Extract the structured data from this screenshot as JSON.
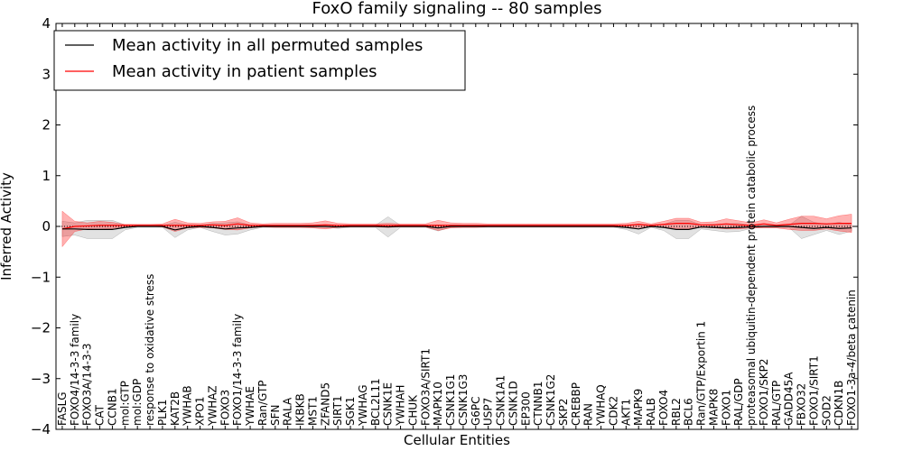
{
  "chart_data": {
    "type": "line",
    "title": "FoxO family signaling -- 80 samples",
    "xlabel": "Cellular Entities",
    "ylabel": "Inferred Activity",
    "ylim": [
      -4,
      4
    ],
    "yticks": [
      -4,
      -3,
      -2,
      -1,
      0,
      1,
      2,
      3,
      4
    ],
    "ytick_labels": [
      "−4",
      "−3",
      "−2",
      "−1",
      "0",
      "1",
      "2",
      "3",
      "4"
    ],
    "legend": {
      "placement": "top-left",
      "entries": [
        {
          "label": "Mean activity in all permuted samples",
          "color": "#000000"
        },
        {
          "label": "Mean activity in patient samples",
          "color": "#ff0000"
        }
      ]
    },
    "categories": [
      "FASLG",
      "FOXO4/14-3-3 family",
      "FOXO3A/14-3-3",
      "CAT",
      "CCNB1",
      "mol:GTP",
      "mol:GDP",
      "response to oxidative stress",
      "PLK1",
      "KAT2B",
      "YWHAB",
      "XPO1",
      "YWHAZ",
      "FOXO3",
      "FOXO1/14-3-3 family",
      "YWHAE",
      "Ran/GTP",
      "SFN",
      "RALA",
      "IKBKB",
      "MST1",
      "ZFAND5",
      "SIRT1",
      "SGK1",
      "YWHAG",
      "BCL2L11",
      "CSNK1E",
      "YWHAH",
      "CHUK",
      "FOXO3A/SIRT1",
      "MAPK10",
      "CSNK1G1",
      "CSNK1G3",
      "G6PC",
      "USP7",
      "CSNK1A1",
      "CSNK1D",
      "EP300",
      "CTNNB1",
      "CSNK1G2",
      "SKP2",
      "CREBBP",
      "RAN",
      "YWHAQ",
      "CDK2",
      "AKT1",
      "MAPK9",
      "RALB",
      "FOXO4",
      "RBL2",
      "BCL6",
      "Ran/GTP/Exportin 1",
      "MAPK8",
      "FOXO1",
      "RAL/GDP",
      "proteasomal ubiquitin-dependent protein catabolic process",
      "FOXO1/SKP2",
      "RAL/GTP",
      "GADD45A",
      "FBXO32",
      "FOXO1/SIRT1",
      "SOD2",
      "CDKN1B",
      "FOXO1-3a-4/beta catenin"
    ],
    "series": [
      {
        "name": "Mean activity in all permuted samples",
        "color": "#000000",
        "values": [
          -0.05,
          -0.05,
          -0.06,
          -0.06,
          -0.06,
          -0.02,
          0,
          0,
          0,
          -0.07,
          -0.02,
          0,
          -0.02,
          -0.05,
          -0.03,
          -0.02,
          0,
          0,
          0,
          0,
          0,
          0,
          -0.01,
          0,
          0,
          0,
          -0.01,
          0,
          0,
          0,
          -0.03,
          0,
          0,
          0,
          0,
          0,
          0,
          0,
          0,
          0,
          0,
          0,
          0,
          0,
          0,
          -0.02,
          -0.05,
          0,
          -0.02,
          -0.06,
          -0.06,
          -0.01,
          -0.02,
          -0.03,
          -0.02,
          -0.01,
          0,
          0,
          0,
          -0.02,
          -0.04,
          -0.02,
          -0.04,
          -0.03
        ],
        "band": [
          0.15,
          0.12,
          0.18,
          0.18,
          0.18,
          0.05,
          0.02,
          0.02,
          0.02,
          0.15,
          0.05,
          0.02,
          0.08,
          0.12,
          0.12,
          0.05,
          0.02,
          0.02,
          0.02,
          0.02,
          0.02,
          0.02,
          0.03,
          0.02,
          0.02,
          0.02,
          0.2,
          0.02,
          0.02,
          0.02,
          0.06,
          0.02,
          0.02,
          0.02,
          0.02,
          0.02,
          0.02,
          0.02,
          0.02,
          0.02,
          0.02,
          0.02,
          0.02,
          0.02,
          0.02,
          0.04,
          0.1,
          0.02,
          0.06,
          0.18,
          0.18,
          0.04,
          0.06,
          0.08,
          0.08,
          0.03,
          0.02,
          0.02,
          0.02,
          0.22,
          0.12,
          0.06,
          0.12,
          0.06
        ]
      },
      {
        "name": "Mean activity in patient samples",
        "color": "#ff0000",
        "values": [
          -0.05,
          0,
          0.01,
          0.02,
          0.02,
          0.02,
          0.02,
          0.02,
          0.02,
          0.02,
          0.02,
          0.02,
          0.03,
          0.02,
          0.05,
          0.02,
          0.02,
          0.02,
          0.02,
          0.02,
          0.02,
          0.03,
          0.02,
          0.02,
          0.02,
          0.02,
          0.02,
          0.02,
          0.02,
          0.02,
          0.02,
          0.02,
          0.02,
          0.02,
          0.02,
          0.02,
          0.02,
          0.02,
          0.02,
          0.02,
          0.02,
          0.02,
          0.02,
          0.02,
          0.02,
          0.02,
          0.04,
          0.02,
          0.04,
          0.06,
          0.06,
          0.03,
          0.03,
          0.05,
          0.03,
          0.02,
          0.05,
          0.02,
          0.04,
          0.06,
          0.06,
          0.05,
          0.06,
          0.06
        ],
        "band": [
          0.35,
          0.1,
          0.06,
          0.08,
          0.06,
          0.02,
          0.02,
          0.02,
          0.03,
          0.12,
          0.05,
          0.04,
          0.06,
          0.08,
          0.12,
          0.05,
          0.03,
          0.04,
          0.04,
          0.04,
          0.05,
          0.08,
          0.04,
          0.03,
          0.03,
          0.03,
          0.04,
          0.03,
          0.03,
          0.03,
          0.1,
          0.05,
          0.04,
          0.04,
          0.03,
          0.03,
          0.03,
          0.03,
          0.03,
          0.03,
          0.03,
          0.03,
          0.03,
          0.03,
          0.03,
          0.04,
          0.06,
          0.03,
          0.06,
          0.1,
          0.1,
          0.05,
          0.06,
          0.1,
          0.08,
          0.05,
          0.08,
          0.05,
          0.1,
          0.14,
          0.14,
          0.1,
          0.15,
          0.18
        ]
      }
    ],
    "zero_line": {
      "value": 0,
      "style": "dotted"
    }
  }
}
